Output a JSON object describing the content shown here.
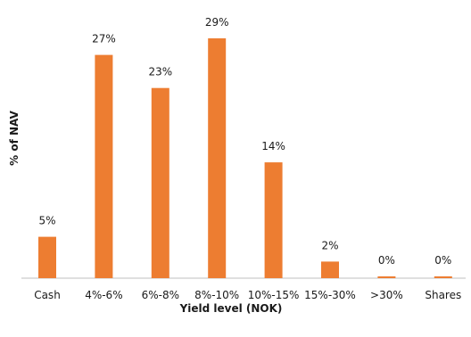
{
  "chart_data": {
    "type": "bar",
    "categories": [
      "Cash",
      "4%-6%",
      "6%-8%",
      "8%-10%",
      "10%-15%",
      "15%-30%",
      ">30%",
      "Shares"
    ],
    "values": [
      5,
      27,
      23,
      29,
      14,
      2,
      0,
      0
    ],
    "data_labels": [
      "5%",
      "27%",
      "23%",
      "29%",
      "14%",
      "2%",
      "0%",
      "0%"
    ],
    "xlabel": "Yield level (NOK)",
    "ylabel": "% of NAV",
    "ylim": [
      0,
      29
    ],
    "grid": false,
    "legend": "none",
    "bar_color": "#ED7D31",
    "axis_color": "#BFBFBF"
  }
}
